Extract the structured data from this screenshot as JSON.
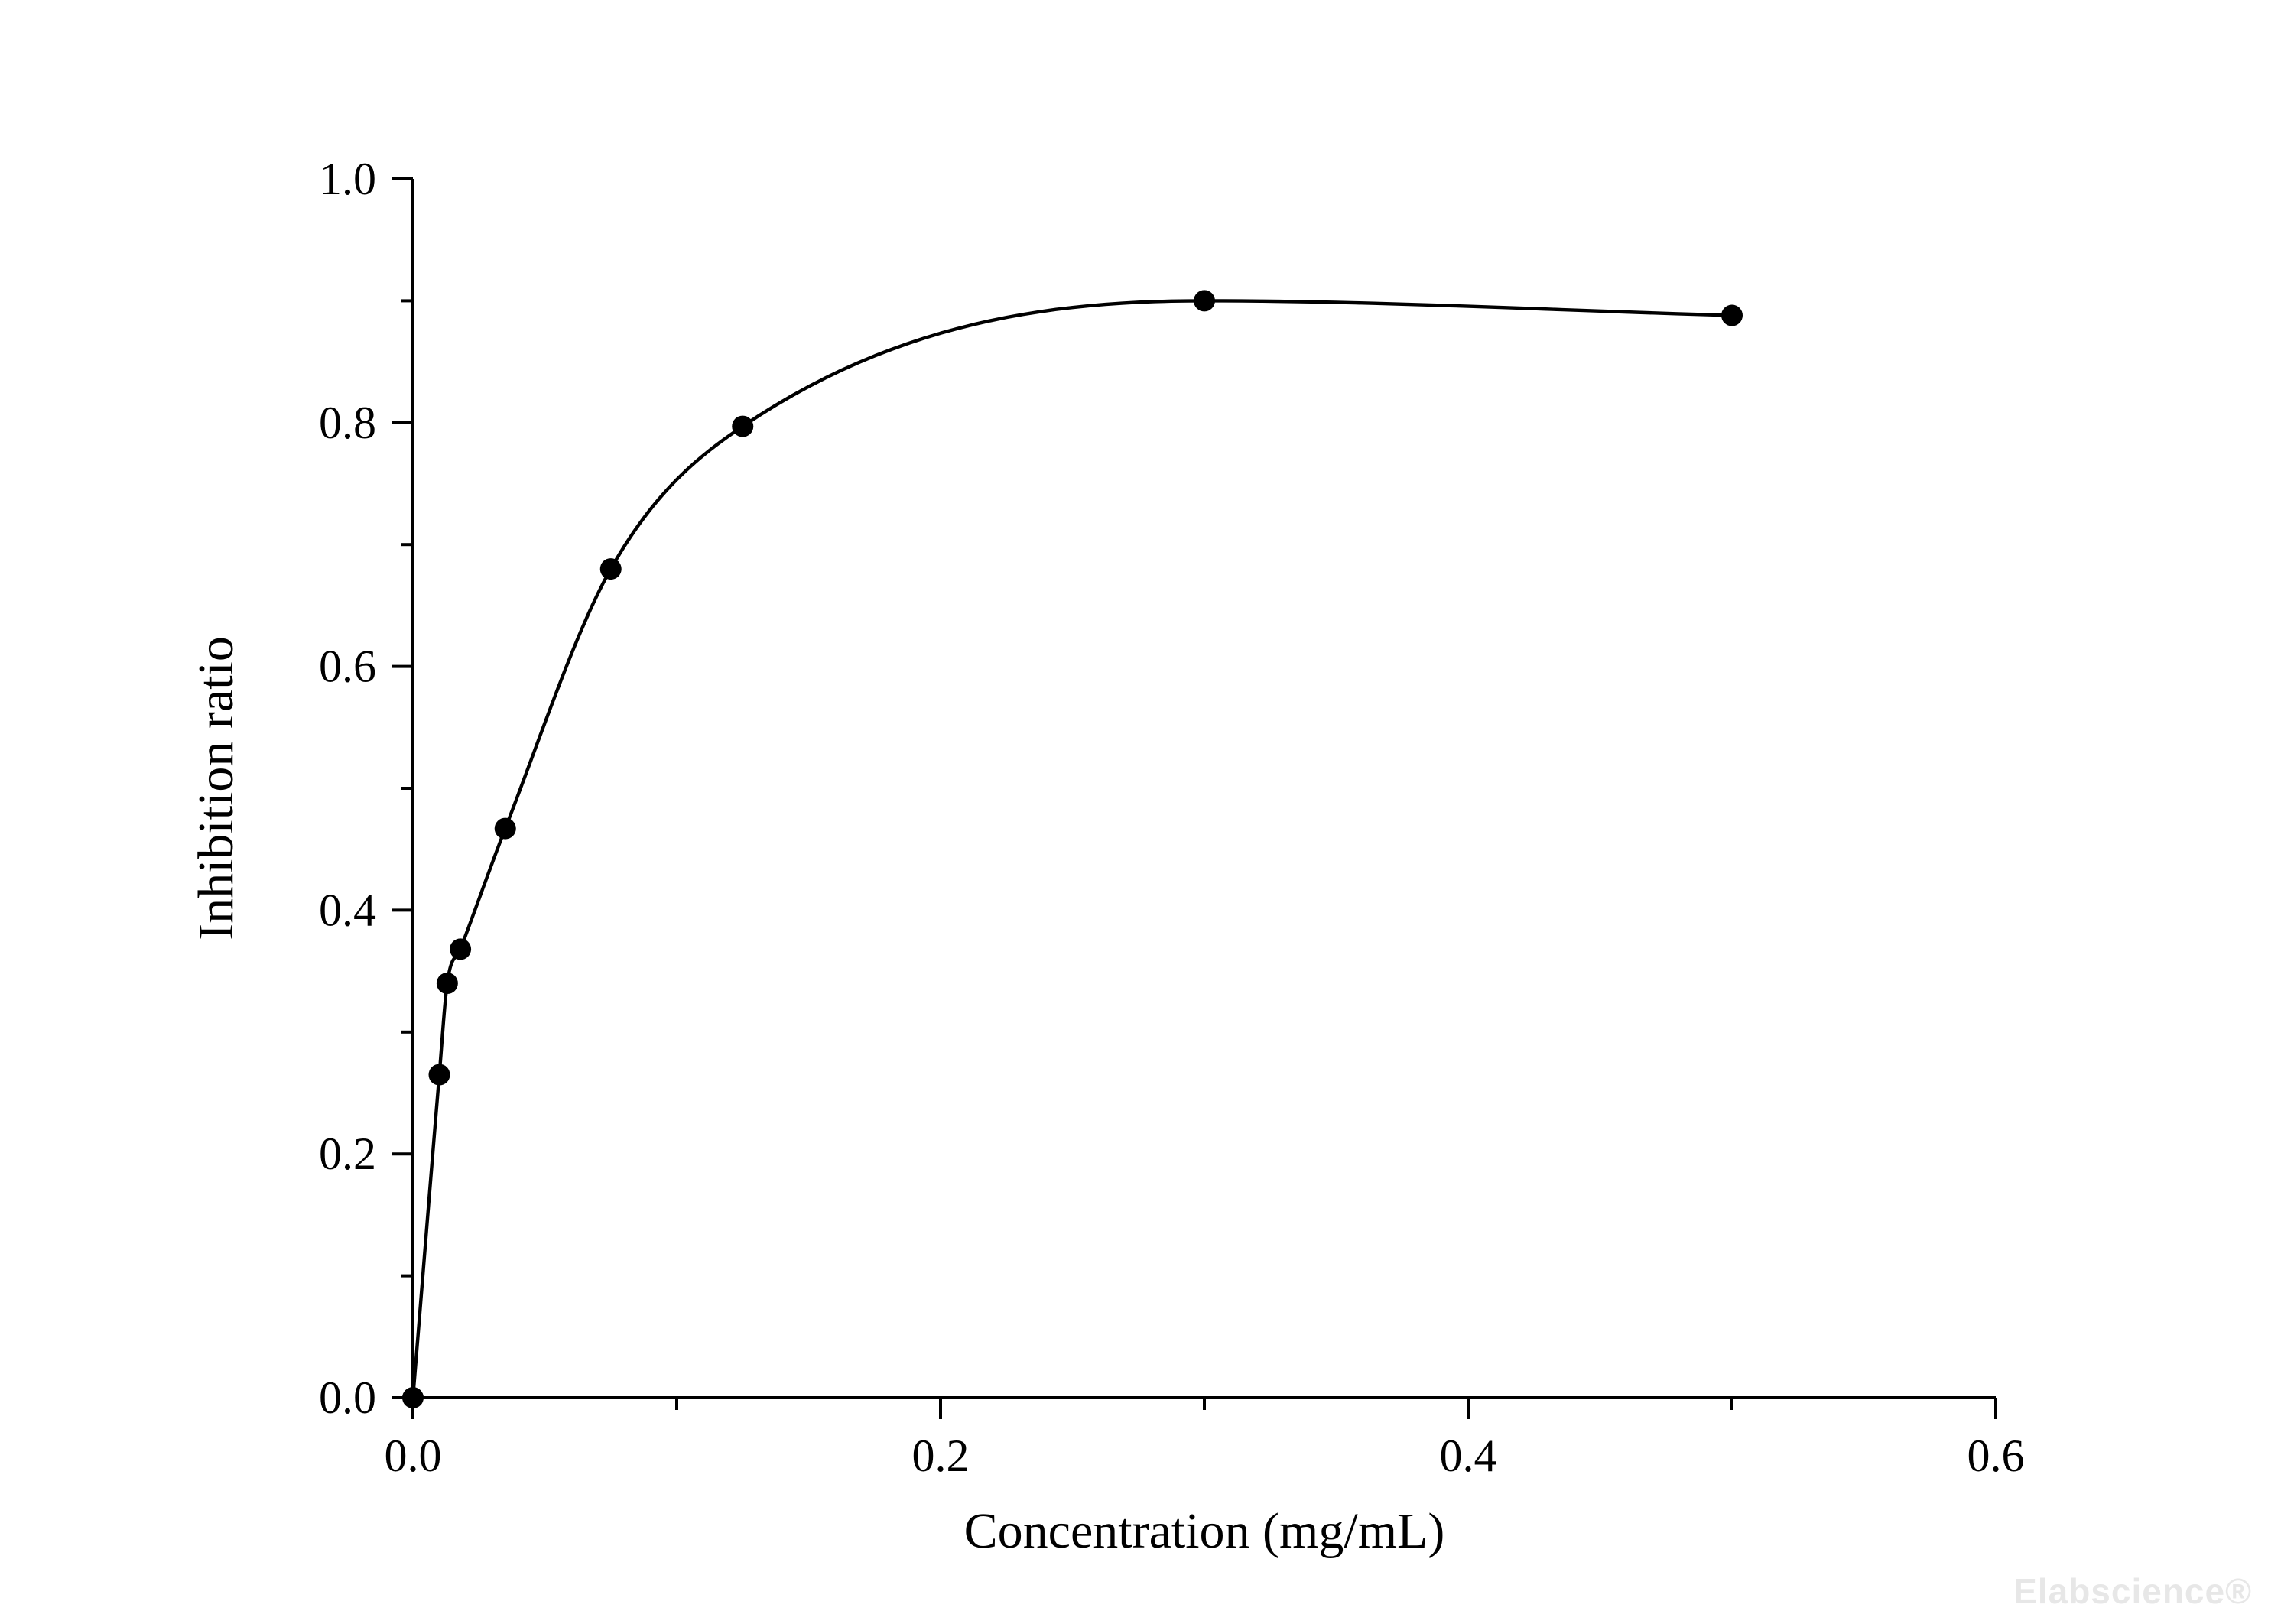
{
  "watermark": {
    "text": "Elabscience®"
  },
  "chart_data": {
    "type": "scatter",
    "title": "",
    "xlabel": "Concentration (mg/mL)",
    "ylabel": "Inhibition ratio",
    "xlim": [
      0,
      0.6
    ],
    "ylim": [
      0,
      1.0
    ],
    "x_major_ticks": [
      0.0,
      0.2,
      0.4,
      0.6
    ],
    "x_tick_labels": [
      "0.0",
      "0.2",
      "0.4",
      "0.6"
    ],
    "x_minor_ticks": [
      0.1,
      0.3,
      0.5
    ],
    "y_major_ticks": [
      0.0,
      0.2,
      0.4,
      0.6,
      0.8,
      1.0
    ],
    "y_tick_labels": [
      "0.0",
      "0.2",
      "0.4",
      "0.6",
      "0.8",
      "1.0"
    ],
    "y_minor_ticks": [
      0.1,
      0.3,
      0.5,
      0.7,
      0.9
    ],
    "grid": false,
    "legend": null,
    "series": [
      {
        "name": "Inhibition ratio",
        "marker": "filled-circle",
        "fit": "smooth-saturation-curve",
        "points": [
          [
            0.0,
            0.0
          ],
          [
            0.01,
            0.265
          ],
          [
            0.013,
            0.34
          ],
          [
            0.018,
            0.368
          ],
          [
            0.035,
            0.467
          ],
          [
            0.075,
            0.68
          ],
          [
            0.125,
            0.797
          ],
          [
            0.3,
            0.9
          ],
          [
            0.5,
            0.888
          ]
        ]
      }
    ],
    "colors": {
      "line": "#000000",
      "marker": "#000000",
      "axis": "#000000",
      "background": "#ffffff",
      "watermark": "#e7e7e7"
    }
  }
}
